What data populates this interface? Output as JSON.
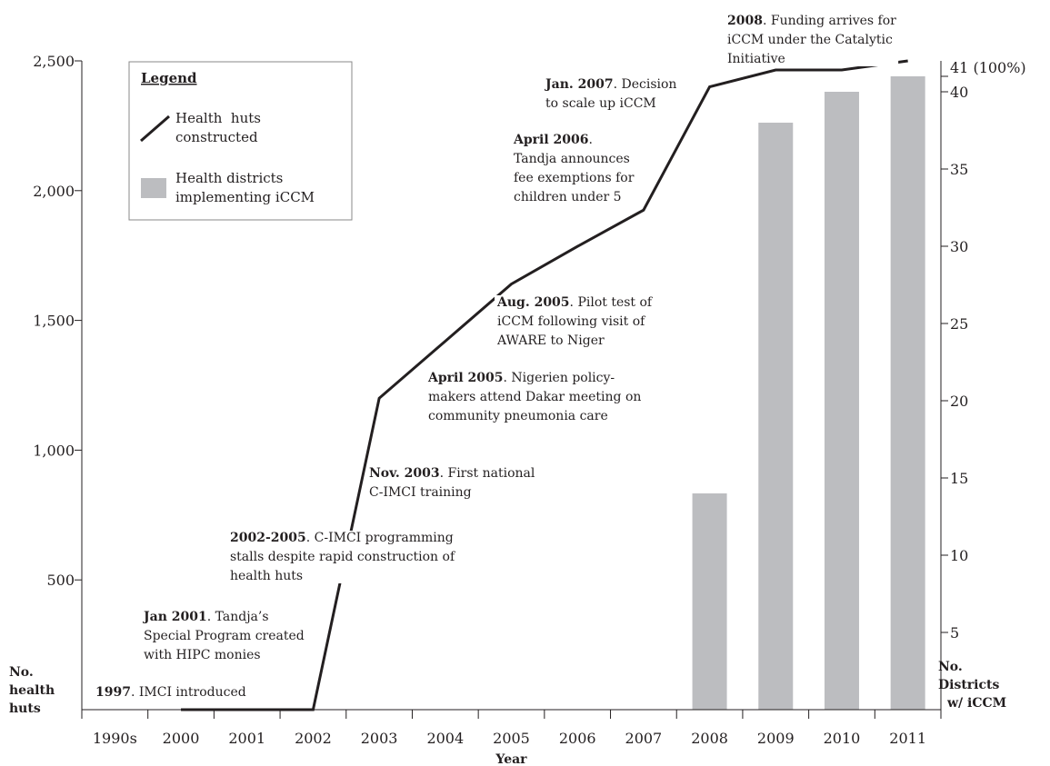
{
  "chart_data": {
    "type": "bar",
    "x_label": "Year",
    "y_label": [
      "No.",
      "health",
      "huts"
    ],
    "y2_label": [
      "No.",
      "Districts",
      "w/ iCCM"
    ],
    "legend_title": "Legend",
    "categories": [
      "1990s",
      "2000",
      "2001",
      "2002",
      "2003",
      "2004",
      "2005",
      "2006",
      "2007",
      "2008",
      "2009",
      "2010",
      "2011"
    ],
    "series": [
      {
        "name": "Health  huts constructed",
        "type": "line",
        "axis": "y",
        "color": "#231f20",
        "values": [
          null,
          0,
          0,
          0,
          1200,
          1420,
          1640,
          1785,
          1925,
          2400,
          2465,
          2465,
          2500
        ]
      },
      {
        "name": "Health districts implementing iCCM",
        "type": "bar",
        "axis": "y2",
        "color": "#bcbdc0",
        "values": [
          null,
          null,
          null,
          null,
          null,
          null,
          null,
          null,
          null,
          14,
          38,
          40,
          41
        ]
      }
    ],
    "ylim": [
      0,
      2500
    ],
    "yticks": [
      {
        "value": 500,
        "label": "500"
      },
      {
        "value": 1000,
        "label": "1,000"
      },
      {
        "value": 1500,
        "label": "1,500"
      },
      {
        "value": 2000,
        "label": "2,000"
      },
      {
        "value": 2500,
        "label": "2,500"
      }
    ],
    "y2lim": [
      0,
      42
    ],
    "y2ticks": [
      5,
      10,
      15,
      20,
      25,
      30,
      35,
      40,
      {
        "value": 41,
        "label": "41 (100%)"
      }
    ],
    "annotations": [
      {
        "head": "1997",
        "lines": [
          ". IMCI introduced"
        ]
      },
      {
        "head": "Jan 2001",
        "lines": [
          ". Tandja’s",
          "Special Program created",
          "with HIPC monies"
        ]
      },
      {
        "head": "2002-2005",
        "lines": [
          ". C-IMCI programming",
          "stalls despite rapid construction of",
          "health huts"
        ]
      },
      {
        "head": "Nov. 2003",
        "lines": [
          ". First national",
          "C-IMCI training"
        ]
      },
      {
        "head": "April 2005",
        "lines": [
          ". Nigerien policy-",
          "makers attend Dakar meeting on",
          "community pneumonia care"
        ]
      },
      {
        "head": "Aug. 2005",
        "lines": [
          ". Pilot test of",
          "iCCM following visit of",
          "AWARE to Niger"
        ]
      },
      {
        "head": "April 2006",
        "lines": [
          ".",
          "Tandja announces",
          "fee exemptions for",
          "children under 5"
        ]
      },
      {
        "head": "Jan. 2007",
        "lines": [
          ". Decision",
          "to scale up iCCM"
        ]
      },
      {
        "head": "2008",
        "lines": [
          ". Funding arrives for",
          "iCCM under the Catalytic",
          "Initiative"
        ]
      }
    ]
  }
}
